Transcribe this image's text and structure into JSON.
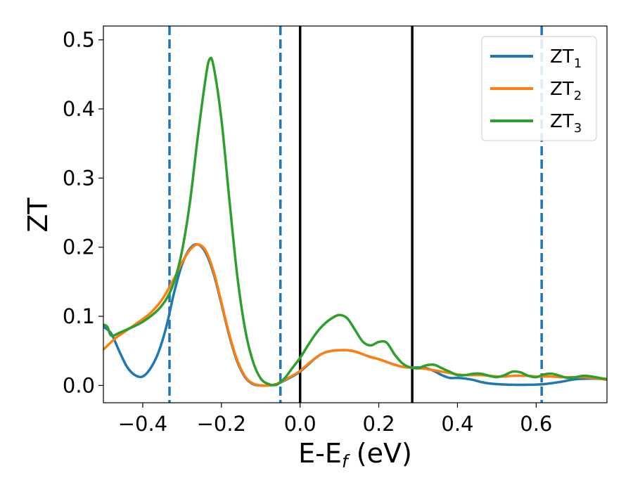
{
  "chart_data": {
    "type": "line",
    "xlabel_main": "E-E",
    "xlabel_sub": "f",
    "xlabel_tail": " (eV)",
    "ylabel": "ZT",
    "xlim": [
      -0.5,
      0.78
    ],
    "ylim": [
      -0.025,
      0.52
    ],
    "grid": false,
    "legend_position": "top-right",
    "xticks": [
      -0.4,
      -0.2,
      0.0,
      0.2,
      0.4,
      0.6
    ],
    "xtick_labels": [
      "−0.4",
      "−0.2",
      "0.0",
      "0.2",
      "0.4",
      "0.6"
    ],
    "yticks": [
      0.0,
      0.1,
      0.2,
      0.3,
      0.4,
      0.5
    ],
    "ytick_labels": [
      "0.0",
      "0.1",
      "0.2",
      "0.3",
      "0.4",
      "0.5"
    ],
    "vlines": [
      {
        "x": -0.332,
        "style": "dashed",
        "color": "#1f77b4"
      },
      {
        "x": -0.05,
        "style": "dashed",
        "color": "#1f77b4"
      },
      {
        "x": 0.0,
        "style": "solid",
        "color": "#000000"
      },
      {
        "x": 0.285,
        "style": "solid",
        "color": "#000000"
      },
      {
        "x": 0.614,
        "style": "dashed",
        "color": "#1f77b4"
      }
    ],
    "series": [
      {
        "name": "ZT",
        "name_sub": "1",
        "color": "#1f77b4",
        "points": [
          [
            -0.5,
            0.085
          ],
          [
            -0.48,
            0.075
          ],
          [
            -0.46,
            0.05
          ],
          [
            -0.44,
            0.027
          ],
          [
            -0.42,
            0.015
          ],
          [
            -0.4,
            0.013
          ],
          [
            -0.38,
            0.025
          ],
          [
            -0.36,
            0.048
          ],
          [
            -0.34,
            0.085
          ],
          [
            -0.32,
            0.135
          ],
          [
            -0.3,
            0.175
          ],
          [
            -0.28,
            0.198
          ],
          [
            -0.26,
            0.204
          ],
          [
            -0.24,
            0.192
          ],
          [
            -0.22,
            0.162
          ],
          [
            -0.2,
            0.118
          ],
          [
            -0.18,
            0.072
          ],
          [
            -0.16,
            0.035
          ],
          [
            -0.14,
            0.012
          ],
          [
            -0.12,
            0.002
          ],
          [
            -0.1,
            0.0
          ],
          [
            -0.08,
            0.0
          ],
          [
            -0.06,
            0.002
          ],
          [
            -0.04,
            0.007
          ],
          [
            -0.02,
            0.013
          ],
          [
            0.0,
            0.02
          ],
          [
            0.02,
            0.03
          ],
          [
            0.04,
            0.04
          ],
          [
            0.06,
            0.047
          ],
          [
            0.08,
            0.05
          ],
          [
            0.1,
            0.051
          ],
          [
            0.12,
            0.051
          ],
          [
            0.14,
            0.049
          ],
          [
            0.16,
            0.045
          ],
          [
            0.18,
            0.041
          ],
          [
            0.2,
            0.038
          ],
          [
            0.22,
            0.034
          ],
          [
            0.24,
            0.03
          ],
          [
            0.26,
            0.027
          ],
          [
            0.28,
            0.026
          ],
          [
            0.3,
            0.026
          ],
          [
            0.32,
            0.025
          ],
          [
            0.34,
            0.021
          ],
          [
            0.36,
            0.015
          ],
          [
            0.38,
            0.011
          ],
          [
            0.4,
            0.011
          ],
          [
            0.42,
            0.01
          ],
          [
            0.44,
            0.008
          ],
          [
            0.46,
            0.005
          ],
          [
            0.48,
            0.003
          ],
          [
            0.5,
            0.002
          ],
          [
            0.54,
            0.001
          ],
          [
            0.58,
            0.001
          ],
          [
            0.62,
            0.002
          ],
          [
            0.66,
            0.005
          ],
          [
            0.7,
            0.009
          ],
          [
            0.74,
            0.01
          ],
          [
            0.78,
            0.009
          ]
        ]
      },
      {
        "name": "ZT",
        "name_sub": "2",
        "color": "#ff7f0e",
        "points": [
          [
            -0.5,
            0.052
          ],
          [
            -0.47,
            0.068
          ],
          [
            -0.44,
            0.08
          ],
          [
            -0.41,
            0.092
          ],
          [
            -0.38,
            0.105
          ],
          [
            -0.35,
            0.125
          ],
          [
            -0.32,
            0.155
          ],
          [
            -0.3,
            0.178
          ],
          [
            -0.28,
            0.196
          ],
          [
            -0.26,
            0.204
          ],
          [
            -0.24,
            0.195
          ],
          [
            -0.22,
            0.165
          ],
          [
            -0.2,
            0.12
          ],
          [
            -0.18,
            0.074
          ],
          [
            -0.16,
            0.037
          ],
          [
            -0.14,
            0.013
          ],
          [
            -0.12,
            0.003
          ],
          [
            -0.1,
            0.0
          ],
          [
            -0.08,
            0.0
          ],
          [
            -0.06,
            0.002
          ],
          [
            -0.04,
            0.008
          ],
          [
            -0.02,
            0.014
          ],
          [
            0.0,
            0.021
          ],
          [
            0.02,
            0.031
          ],
          [
            0.04,
            0.04
          ],
          [
            0.06,
            0.047
          ],
          [
            0.08,
            0.05
          ],
          [
            0.1,
            0.051
          ],
          [
            0.12,
            0.051
          ],
          [
            0.14,
            0.049
          ],
          [
            0.16,
            0.045
          ],
          [
            0.18,
            0.041
          ],
          [
            0.2,
            0.038
          ],
          [
            0.22,
            0.034
          ],
          [
            0.24,
            0.03
          ],
          [
            0.26,
            0.027
          ],
          [
            0.28,
            0.026
          ],
          [
            0.3,
            0.025
          ],
          [
            0.32,
            0.024
          ],
          [
            0.34,
            0.022
          ],
          [
            0.36,
            0.02
          ],
          [
            0.38,
            0.018
          ],
          [
            0.4,
            0.016
          ],
          [
            0.42,
            0.015
          ],
          [
            0.44,
            0.015
          ],
          [
            0.46,
            0.015
          ],
          [
            0.48,
            0.014
          ],
          [
            0.5,
            0.013
          ],
          [
            0.52,
            0.013
          ],
          [
            0.54,
            0.014
          ],
          [
            0.56,
            0.014
          ],
          [
            0.58,
            0.014
          ],
          [
            0.6,
            0.013
          ],
          [
            0.62,
            0.013
          ],
          [
            0.64,
            0.013
          ],
          [
            0.66,
            0.012
          ],
          [
            0.68,
            0.012
          ],
          [
            0.7,
            0.012
          ],
          [
            0.72,
            0.012
          ],
          [
            0.74,
            0.011
          ],
          [
            0.76,
            0.01
          ],
          [
            0.78,
            0.008
          ]
        ]
      },
      {
        "name": "ZT",
        "name_sub": "3",
        "color": "#2ca02c",
        "points": [
          [
            -0.5,
            0.088
          ],
          [
            -0.49,
            0.085
          ],
          [
            -0.48,
            0.072
          ],
          [
            -0.46,
            0.076
          ],
          [
            -0.44,
            0.081
          ],
          [
            -0.42,
            0.086
          ],
          [
            -0.4,
            0.092
          ],
          [
            -0.38,
            0.1
          ],
          [
            -0.36,
            0.11
          ],
          [
            -0.34,
            0.125
          ],
          [
            -0.32,
            0.15
          ],
          [
            -0.3,
            0.195
          ],
          [
            -0.28,
            0.265
          ],
          [
            -0.26,
            0.36
          ],
          [
            -0.24,
            0.445
          ],
          [
            -0.23,
            0.472
          ],
          [
            -0.22,
            0.462
          ],
          [
            -0.2,
            0.385
          ],
          [
            -0.18,
            0.27
          ],
          [
            -0.16,
            0.16
          ],
          [
            -0.14,
            0.082
          ],
          [
            -0.12,
            0.035
          ],
          [
            -0.1,
            0.01
          ],
          [
            -0.08,
            0.002
          ],
          [
            -0.06,
            0.001
          ],
          [
            -0.04,
            0.01
          ],
          [
            -0.02,
            0.025
          ],
          [
            0.0,
            0.04
          ],
          [
            0.02,
            0.058
          ],
          [
            0.04,
            0.075
          ],
          [
            0.06,
            0.088
          ],
          [
            0.08,
            0.097
          ],
          [
            0.1,
            0.102
          ],
          [
            0.12,
            0.097
          ],
          [
            0.14,
            0.08
          ],
          [
            0.16,
            0.063
          ],
          [
            0.18,
            0.058
          ],
          [
            0.2,
            0.063
          ],
          [
            0.22,
            0.062
          ],
          [
            0.24,
            0.045
          ],
          [
            0.26,
            0.032
          ],
          [
            0.28,
            0.026
          ],
          [
            0.3,
            0.025
          ],
          [
            0.32,
            0.029
          ],
          [
            0.34,
            0.03
          ],
          [
            0.36,
            0.025
          ],
          [
            0.38,
            0.02
          ],
          [
            0.4,
            0.015
          ],
          [
            0.42,
            0.015
          ],
          [
            0.44,
            0.017
          ],
          [
            0.46,
            0.017
          ],
          [
            0.48,
            0.014
          ],
          [
            0.5,
            0.012
          ],
          [
            0.52,
            0.015
          ],
          [
            0.54,
            0.02
          ],
          [
            0.56,
            0.019
          ],
          [
            0.58,
            0.014
          ],
          [
            0.6,
            0.012
          ],
          [
            0.62,
            0.016
          ],
          [
            0.64,
            0.017
          ],
          [
            0.66,
            0.014
          ],
          [
            0.68,
            0.011
          ],
          [
            0.7,
            0.012
          ],
          [
            0.72,
            0.014
          ],
          [
            0.74,
            0.013
          ],
          [
            0.76,
            0.011
          ],
          [
            0.78,
            0.009
          ]
        ]
      }
    ]
  }
}
